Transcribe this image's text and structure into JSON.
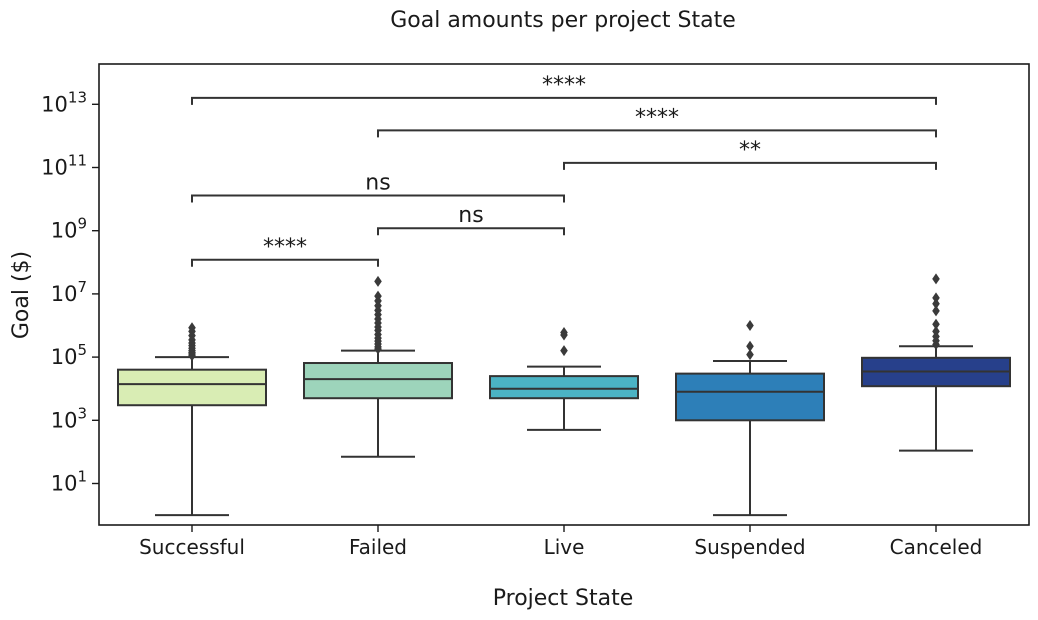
{
  "chart_data": {
    "type": "box",
    "title": "Goal amounts per project State",
    "xlabel": "Project State",
    "ylabel": "Goal ($)",
    "yscale": "log",
    "ylim": [
      0.3,
      100000000000000.0
    ],
    "yticks": [
      {
        "exp": 1,
        "value": 10
      },
      {
        "exp": 3,
        "value": 1000
      },
      {
        "exp": 5,
        "value": 100000
      },
      {
        "exp": 7,
        "value": 10000000
      },
      {
        "exp": 9,
        "value": 1000000000
      },
      {
        "exp": 11,
        "value": 100000000000
      },
      {
        "exp": 13,
        "value": 10000000000000
      }
    ],
    "categories": [
      "Successful",
      "Failed",
      "Live",
      "Suspended",
      "Canceled"
    ],
    "boxes": [
      {
        "category": "Successful",
        "color": "#d9edb4",
        "whisker_low": 1,
        "q1": 3000,
        "median": 14000,
        "q3": 40000,
        "whisker_high": 100000,
        "outliers": [
          110000,
          125000,
          140000,
          160000,
          190000,
          230000,
          280000,
          350000,
          480000,
          650000,
          850000
        ]
      },
      {
        "category": "Failed",
        "color": "#9dd4bb",
        "whisker_low": 70,
        "q1": 5000,
        "median": 20000,
        "q3": 65000,
        "whisker_high": 160000,
        "outliers": [
          180000,
          210000,
          260000,
          320000,
          400000,
          520000,
          700000,
          900000,
          1200000,
          1600000,
          2200000,
          3000000,
          4200000,
          6000000,
          8500000,
          25000000
        ]
      },
      {
        "category": "Live",
        "color": "#4bb3c4",
        "whisker_low": 500,
        "q1": 5000,
        "median": 10000,
        "q3": 25000,
        "whisker_high": 50000,
        "outliers": [
          160000,
          500000,
          600000
        ]
      },
      {
        "category": "Suspended",
        "color": "#2d7fb8",
        "whisker_low": 1,
        "q1": 1000,
        "median": 8000,
        "q3": 30000,
        "whisker_high": 75000,
        "outliers": [
          120000,
          220000,
          1000000
        ]
      },
      {
        "category": "Canceled",
        "color": "#27408b",
        "whisker_low": 110,
        "q1": 12000,
        "median": 35000,
        "q3": 95000,
        "whisker_high": 220000,
        "outliers": [
          250000,
          330000,
          450000,
          650000,
          1100000,
          2900000,
          4900000,
          7500000,
          30000000
        ]
      }
    ],
    "annotations": [
      {
        "from": "Successful",
        "to": "Failed",
        "label": "****",
        "y": 120000000
      },
      {
        "from": "Failed",
        "to": "Live",
        "label": "ns",
        "y": 1200000000
      },
      {
        "from": "Successful",
        "to": "Live",
        "label": "ns",
        "y": 13000000000
      },
      {
        "from": "Live",
        "to": "Canceled",
        "label": "**",
        "y": 140000000000
      },
      {
        "from": "Failed",
        "to": "Canceled",
        "label": "****",
        "y": 1500000000000
      },
      {
        "from": "Successful",
        "to": "Canceled",
        "label": "****",
        "y": 16000000000000
      }
    ],
    "grid": false,
    "legend": "none"
  }
}
